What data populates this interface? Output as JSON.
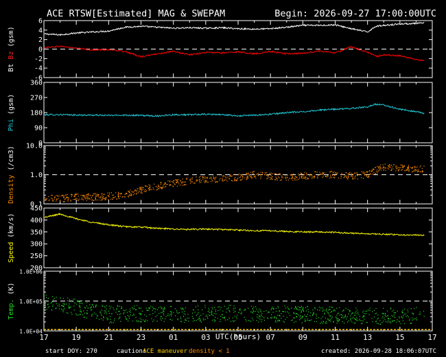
{
  "header": {
    "title": "ACE RTSW[Estimated] MAG & SWEPAM",
    "begin": "Begin: 2026-09-27 17:00:00UTC"
  },
  "footer": {
    "start_doy": "start DOY: 270",
    "caution": "caution:",
    "ace_maneuver": "ACE maneuver",
    "density_note": "density < 1",
    "created": "created: 2026-09-28 18:06:07UTC"
  },
  "colors": {
    "background": "#000000",
    "frame": "#ffffff",
    "bt": "#ffffff",
    "bz": "#ff0000",
    "phi": "#1fc7d4",
    "density": "#ff8c00",
    "speed": "#ffff00",
    "temp": "#22dd22",
    "maneuver": "#ffd000"
  },
  "chart_data": {
    "type": "scatter",
    "x_axis": {
      "label": "UTC(hours)",
      "tick_labels": [
        "17",
        "19",
        "21",
        "23",
        "01",
        "03",
        "05",
        "07",
        "09",
        "11",
        "13",
        "15",
        "17"
      ],
      "x_range_hours": [
        0,
        24
      ]
    },
    "panels": [
      {
        "id": "mag",
        "ylabel_parts": [
          {
            "text": "Bt",
            "color": "#ffffff"
          },
          {
            "text": " Bz",
            "color": "#ff2020"
          },
          {
            "text": " (gsm)",
            "color": "#ffffff"
          }
        ],
        "ylim": [
          -6,
          6
        ],
        "scale": "linear",
        "yticks": [
          "6",
          "4",
          "2",
          "0",
          "-2",
          "-4",
          "-6"
        ],
        "ytick_values": [
          6,
          4,
          2,
          0,
          -2,
          -4,
          -6
        ],
        "dashed_line_at": 0,
        "series": [
          {
            "name": "Bt",
            "color": "#ffffff",
            "mode": "line",
            "points": [
              [
                0,
                3.2
              ],
              [
                1,
                3.0
              ],
              [
                2,
                3.4
              ],
              [
                3,
                3.6
              ],
              [
                4,
                3.8
              ],
              [
                5,
                4.6
              ],
              [
                6,
                4.8
              ],
              [
                7,
                4.6
              ],
              [
                8,
                4.4
              ],
              [
                9,
                4.5
              ],
              [
                10,
                4.4
              ],
              [
                11,
                4.5
              ],
              [
                12,
                4.3
              ],
              [
                13,
                4.2
              ],
              [
                14,
                4.3
              ],
              [
                15,
                4.6
              ],
              [
                16,
                5.0
              ],
              [
                17,
                5.0
              ],
              [
                18,
                5.1
              ],
              [
                19,
                4.3
              ],
              [
                20,
                3.6
              ],
              [
                20.5,
                4.8
              ],
              [
                21,
                5.0
              ],
              [
                22,
                5.3
              ],
              [
                23,
                5.4
              ],
              [
                23.5,
                5.5
              ]
            ]
          },
          {
            "name": "Bz",
            "color": "#ff0000",
            "mode": "line",
            "points": [
              [
                0,
                0.3
              ],
              [
                1,
                0.6
              ],
              [
                2,
                0.2
              ],
              [
                3,
                -0.2
              ],
              [
                4,
                -0.1
              ],
              [
                5,
                -0.5
              ],
              [
                6,
                -1.6
              ],
              [
                7,
                -1.0
              ],
              [
                8,
                -0.5
              ],
              [
                9,
                -1.2
              ],
              [
                10,
                -0.7
              ],
              [
                11,
                -0.8
              ],
              [
                12,
                -0.6
              ],
              [
                13,
                -1.0
              ],
              [
                14,
                -0.5
              ],
              [
                15,
                -1.0
              ],
              [
                16,
                -0.9
              ],
              [
                17,
                -0.4
              ],
              [
                18,
                -0.8
              ],
              [
                19,
                0.5
              ],
              [
                20,
                -0.7
              ],
              [
                20.6,
                -1.5
              ],
              [
                21,
                -1.2
              ],
              [
                22,
                -1.4
              ],
              [
                23,
                -2.2
              ],
              [
                23.5,
                -2.4
              ]
            ]
          }
        ]
      },
      {
        "id": "phi",
        "ylabel_parts": [
          {
            "text": "Phi",
            "color": "#1fc7d4"
          },
          {
            "text": " (gsm)",
            "color": "#ffffff"
          }
        ],
        "ylim": [
          0,
          360
        ],
        "scale": "linear",
        "yticks": [
          "360",
          "270",
          "180",
          "90",
          "0"
        ],
        "ytick_values": [
          360,
          270,
          180,
          90,
          0
        ],
        "series": [
          {
            "name": "Phi",
            "color": "#1fc7d4",
            "mode": "line",
            "points": [
              [
                0,
                167
              ],
              [
                1,
                168
              ],
              [
                2,
                165
              ],
              [
                3,
                165
              ],
              [
                4,
                163
              ],
              [
                5,
                165
              ],
              [
                6,
                163
              ],
              [
                7,
                160
              ],
              [
                8,
                168
              ],
              [
                9,
                167
              ],
              [
                10,
                170
              ],
              [
                11,
                168
              ],
              [
                12,
                160
              ],
              [
                13,
                165
              ],
              [
                14,
                170
              ],
              [
                15,
                180
              ],
              [
                16,
                185
              ],
              [
                17,
                195
              ],
              [
                18,
                200
              ],
              [
                19,
                205
              ],
              [
                20,
                215
              ],
              [
                20.5,
                230
              ],
              [
                21,
                225
              ],
              [
                22,
                200
              ],
              [
                23,
                185
              ],
              [
                23.5,
                175
              ]
            ]
          }
        ]
      },
      {
        "id": "density",
        "ylabel_parts": [
          {
            "text": "Density",
            "color": "#ff8c00"
          },
          {
            "text": " (/cm3)",
            "color": "#ffffff"
          }
        ],
        "ylim": [
          0.1,
          10.0
        ],
        "scale": "log",
        "yticks": [
          "10.0",
          "1.0",
          "0.1"
        ],
        "ytick_values": [
          10.0,
          1.0,
          0.1
        ],
        "dashed_line_at": 1.0,
        "series": [
          {
            "name": "Density",
            "color": "#ff8c00",
            "mode": "scatter",
            "points": [
              [
                0,
                0.15
              ],
              [
                1,
                0.15
              ],
              [
                2,
                0.17
              ],
              [
                3,
                0.17
              ],
              [
                4,
                0.18
              ],
              [
                5,
                0.2
              ],
              [
                6,
                0.3
              ],
              [
                7,
                0.4
              ],
              [
                8,
                0.5
              ],
              [
                9,
                0.6
              ],
              [
                10,
                0.7
              ],
              [
                11,
                0.75
              ],
              [
                12,
                0.8
              ],
              [
                13,
                1.0
              ],
              [
                14,
                0.9
              ],
              [
                15,
                0.8
              ],
              [
                16,
                0.9
              ],
              [
                17,
                1.0
              ],
              [
                18,
                1.0
              ],
              [
                19,
                0.9
              ],
              [
                20,
                1.0
              ],
              [
                21,
                1.8
              ],
              [
                22,
                1.7
              ],
              [
                23,
                1.5
              ],
              [
                23.5,
                1.6
              ]
            ]
          }
        ]
      },
      {
        "id": "speed",
        "ylabel_parts": [
          {
            "text": "Speed",
            "color": "#ffff00"
          },
          {
            "text": " (km/s)",
            "color": "#ffffff"
          }
        ],
        "ylim": [
          200,
          450
        ],
        "scale": "linear",
        "yticks": [
          "450",
          "400",
          "350",
          "300",
          "250",
          "200"
        ],
        "ytick_values": [
          450,
          400,
          350,
          300,
          250,
          200
        ],
        "series": [
          {
            "name": "Speed",
            "color": "#ffff00",
            "mode": "line",
            "points": [
              [
                0,
                410
              ],
              [
                1,
                425
              ],
              [
                2,
                405
              ],
              [
                3,
                390
              ],
              [
                4,
                380
              ],
              [
                5,
                372
              ],
              [
                6,
                370
              ],
              [
                7,
                365
              ],
              [
                8,
                362
              ],
              [
                9,
                360
              ],
              [
                10,
                362
              ],
              [
                11,
                360
              ],
              [
                12,
                358
              ],
              [
                13,
                355
              ],
              [
                14,
                355
              ],
              [
                15,
                352
              ],
              [
                16,
                350
              ],
              [
                17,
                350
              ],
              [
                18,
                348
              ],
              [
                19,
                345
              ],
              [
                20,
                342
              ],
              [
                21,
                340
              ],
              [
                22,
                338
              ],
              [
                23,
                337
              ],
              [
                23.5,
                335
              ]
            ]
          }
        ]
      },
      {
        "id": "temp",
        "ylabel_parts": [
          {
            "text": "Temp.",
            "color": "#22dd22"
          },
          {
            "text": " (K)",
            "color": "#ffffff"
          }
        ],
        "ylim": [
          10000,
          1000000
        ],
        "scale": "log",
        "yticks": [
          "1.0E+06",
          "1.0E+05",
          "1.0E+04"
        ],
        "ytick_values": [
          1000000,
          100000,
          10000
        ],
        "dashed_line_at": 100000,
        "series": [
          {
            "name": "Temp.",
            "color": "#22dd22",
            "mode": "scatter",
            "points": [
              [
                0,
                90000
              ],
              [
                1,
                80000
              ],
              [
                2,
                60000
              ],
              [
                3,
                45000
              ],
              [
                4,
                35000
              ],
              [
                5,
                40000
              ],
              [
                6,
                38000
              ],
              [
                7,
                35000
              ],
              [
                8,
                40000
              ],
              [
                9,
                35000
              ],
              [
                10,
                38000
              ],
              [
                11,
                36000
              ],
              [
                12,
                40000
              ],
              [
                13,
                35000
              ],
              [
                14,
                38000
              ],
              [
                15,
                37000
              ],
              [
                16,
                35000
              ],
              [
                17,
                33000
              ],
              [
                18,
                34000
              ],
              [
                19,
                33000
              ],
              [
                20,
                32000
              ],
              [
                21,
                30000
              ],
              [
                22,
                32000
              ],
              [
                23,
                34000
              ],
              [
                23.5,
                33000
              ]
            ]
          }
        ]
      }
    ]
  }
}
